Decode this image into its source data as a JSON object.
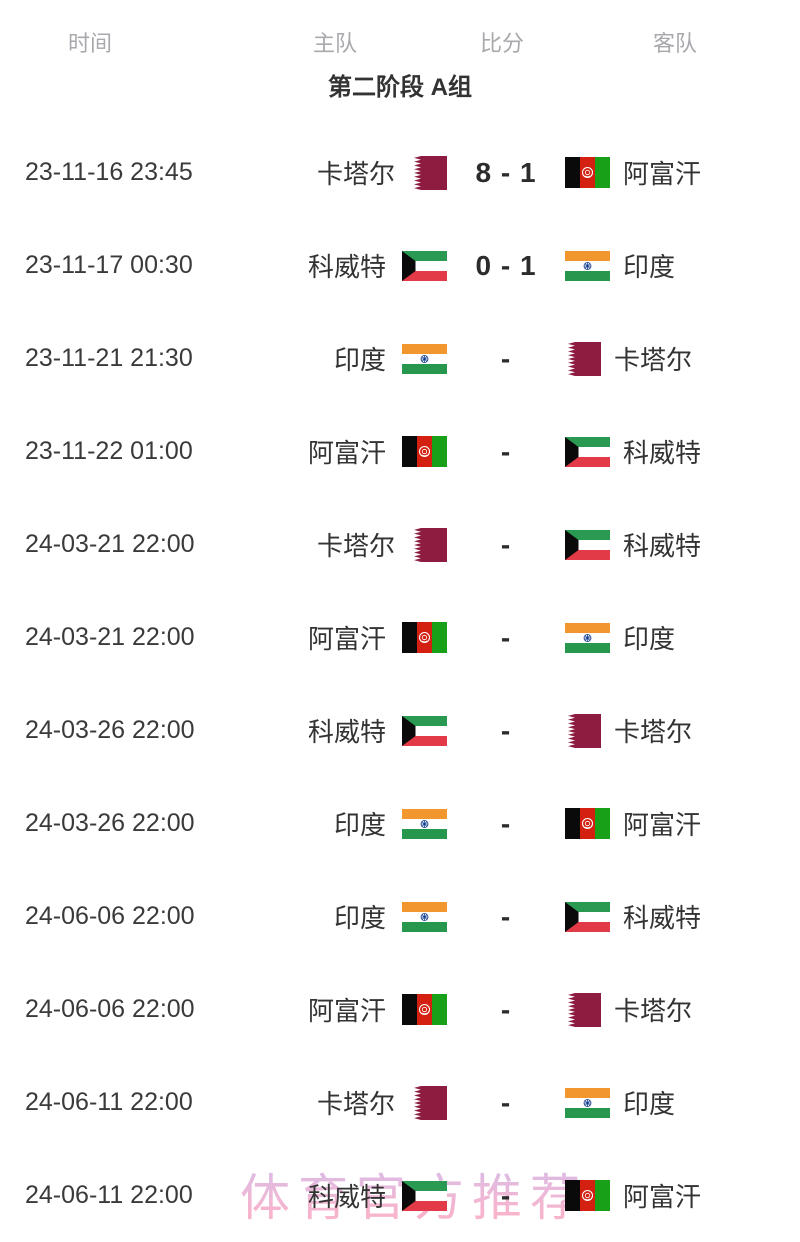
{
  "header": {
    "time": "时间",
    "home": "主队",
    "score": "比分",
    "away": "客队"
  },
  "section_title": "第二阶段 A组",
  "watermark": "体育官方推荐",
  "colors": {
    "text_dark": "#333333",
    "header_gray": "#a8a8ad",
    "score_dark": "#2c2c2c",
    "watermark_top": "#cdb3e9",
    "watermark_bottom": "#f7a8c5"
  },
  "flag_colors": {
    "qatar": {
      "maroon": "#8e1c41",
      "white": "#ffffff"
    },
    "kuwait": {
      "green": "#2a9a52",
      "white": "#ffffff",
      "red": "#e23a47",
      "black": "#0a0a0a"
    },
    "india": {
      "saffron": "#f2962e",
      "white": "#ffffff",
      "green": "#27974d",
      "navy": "#123d8f"
    },
    "afghanistan": {
      "black": "#0a0a0a",
      "red": "#d32011",
      "green": "#18a018",
      "white": "#ffffff"
    }
  },
  "matches": [
    {
      "time": "23-11-16 23:45",
      "home": {
        "name": "卡塔尔",
        "flag": "qatar"
      },
      "score": "8 - 1",
      "away": {
        "name": "阿富汗",
        "flag": "afghanistan"
      }
    },
    {
      "time": "23-11-17 00:30",
      "home": {
        "name": "科威特",
        "flag": "kuwait"
      },
      "score": "0 - 1",
      "away": {
        "name": "印度",
        "flag": "india"
      }
    },
    {
      "time": "23-11-21 21:30",
      "home": {
        "name": "印度",
        "flag": "india"
      },
      "score": "-",
      "away": {
        "name": "卡塔尔",
        "flag": "qatar"
      }
    },
    {
      "time": "23-11-22 01:00",
      "home": {
        "name": "阿富汗",
        "flag": "afghanistan"
      },
      "score": "-",
      "away": {
        "name": "科威特",
        "flag": "kuwait"
      }
    },
    {
      "time": "24-03-21 22:00",
      "home": {
        "name": "卡塔尔",
        "flag": "qatar"
      },
      "score": "-",
      "away": {
        "name": "科威特",
        "flag": "kuwait"
      }
    },
    {
      "time": "24-03-21 22:00",
      "home": {
        "name": "阿富汗",
        "flag": "afghanistan"
      },
      "score": "-",
      "away": {
        "name": "印度",
        "flag": "india"
      }
    },
    {
      "time": "24-03-26 22:00",
      "home": {
        "name": "科威特",
        "flag": "kuwait"
      },
      "score": "-",
      "away": {
        "name": "卡塔尔",
        "flag": "qatar"
      }
    },
    {
      "time": "24-03-26 22:00",
      "home": {
        "name": "印度",
        "flag": "india"
      },
      "score": "-",
      "away": {
        "name": "阿富汗",
        "flag": "afghanistan"
      }
    },
    {
      "time": "24-06-06 22:00",
      "home": {
        "name": "印度",
        "flag": "india"
      },
      "score": "-",
      "away": {
        "name": "科威特",
        "flag": "kuwait"
      }
    },
    {
      "time": "24-06-06 22:00",
      "home": {
        "name": "阿富汗",
        "flag": "afghanistan"
      },
      "score": "-",
      "away": {
        "name": "卡塔尔",
        "flag": "qatar"
      }
    },
    {
      "time": "24-06-11 22:00",
      "home": {
        "name": "卡塔尔",
        "flag": "qatar"
      },
      "score": "-",
      "away": {
        "name": "印度",
        "flag": "india"
      }
    },
    {
      "time": "24-06-11 22:00",
      "home": {
        "name": "科威特",
        "flag": "kuwait"
      },
      "score": "-",
      "away": {
        "name": "阿富汗",
        "flag": "afghanistan"
      }
    }
  ]
}
